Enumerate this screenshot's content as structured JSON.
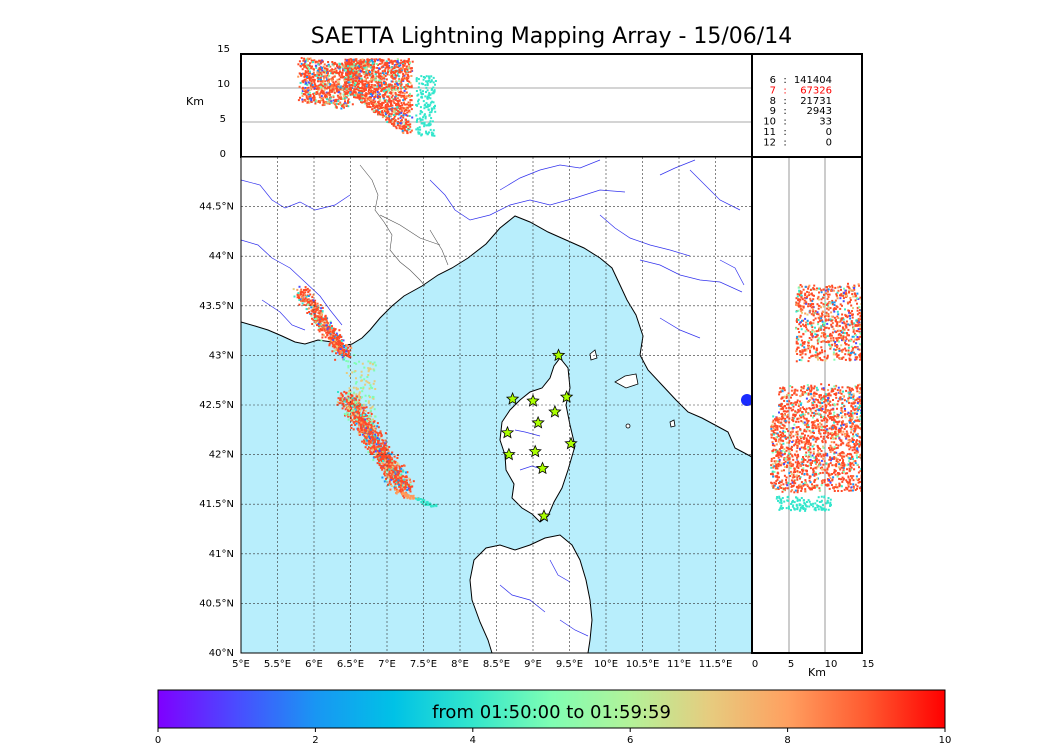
{
  "title": "SAETTA Lightning Mapping Array - 15/06/14",
  "altitude_panel": {
    "ylabel": "Km",
    "ticks": [
      "15",
      "10",
      "5",
      "0"
    ]
  },
  "side_panel": {
    "xlabel": "Km",
    "ticks": [
      "0",
      "5",
      "10",
      "15"
    ]
  },
  "stations_table": [
    {
      "n": "6",
      "sep": ":",
      "count": "141404",
      "color": "#000000"
    },
    {
      "n": "7",
      "sep": ":",
      "count": "67326",
      "color": "#ff0000"
    },
    {
      "n": "8",
      "sep": ":",
      "count": "21731",
      "color": "#000000"
    },
    {
      "n": "9",
      "sep": ":",
      "count": "2943",
      "color": "#000000"
    },
    {
      "n": "10",
      "sep": ":",
      "count": "33",
      "color": "#000000"
    },
    {
      "n": "11",
      "sep": ":",
      "count": "0",
      "color": "#000000"
    },
    {
      "n": "12",
      "sep": ":",
      "count": "0",
      "color": "#000000"
    }
  ],
  "map": {
    "lon_ticks": [
      "5°E",
      "5.5°E",
      "6°E",
      "6.5°E",
      "7°E",
      "7.5°E",
      "8°E",
      "8.5°E",
      "9°E",
      "9.5°E",
      "10°E",
      "10.5°E",
      "11°E",
      "11.5°E"
    ],
    "lat_ticks": [
      "44.5°N",
      "44°N",
      "43.5°N",
      "43°N",
      "42.5°N",
      "42°N",
      "41.5°N",
      "41°N",
      "40.5°N",
      "40°N"
    ],
    "lon_values": [
      5,
      5.5,
      6,
      6.5,
      7,
      7.5,
      8,
      8.5,
      9,
      9.5,
      10,
      10.5,
      11,
      11.5
    ],
    "lat_values": [
      44.5,
      44,
      43.5,
      43,
      42.5,
      42,
      41.5,
      41,
      40.5,
      40
    ],
    "lon_range": [
      5,
      12
    ],
    "lat_range": [
      40,
      45
    ],
    "sea_color": "#b8eefc",
    "land_color": "#ffffff",
    "river_color": "#3333ee",
    "station_color": "#aaff00",
    "stations": [
      {
        "lon": 9.35,
        "lat": 43.0
      },
      {
        "lon": 8.72,
        "lat": 42.56
      },
      {
        "lon": 9.0,
        "lat": 42.54
      },
      {
        "lon": 9.46,
        "lat": 42.58
      },
      {
        "lon": 9.3,
        "lat": 42.43
      },
      {
        "lon": 9.07,
        "lat": 42.32
      },
      {
        "lon": 8.65,
        "lat": 42.22
      },
      {
        "lon": 9.52,
        "lat": 42.11
      },
      {
        "lon": 9.03,
        "lat": 42.03
      },
      {
        "lon": 8.67,
        "lat": 42.0
      },
      {
        "lon": 9.13,
        "lat": 41.86
      },
      {
        "lon": 9.15,
        "lat": 41.38
      }
    ]
  },
  "colorbar": {
    "label": "from 01:50:00 to 01:59:59",
    "ticks": [
      "0",
      "2",
      "4",
      "6",
      "8",
      "10"
    ],
    "range": [
      0,
      10
    ],
    "colors": [
      "#7f00ff",
      "#4a4cff",
      "#1996f3",
      "#00c2e6",
      "#33e6cc",
      "#7ffeb3",
      "#b3f299",
      "#e6cc7f",
      "#ffa060",
      "#ff5a30",
      "#ff0000"
    ]
  }
}
